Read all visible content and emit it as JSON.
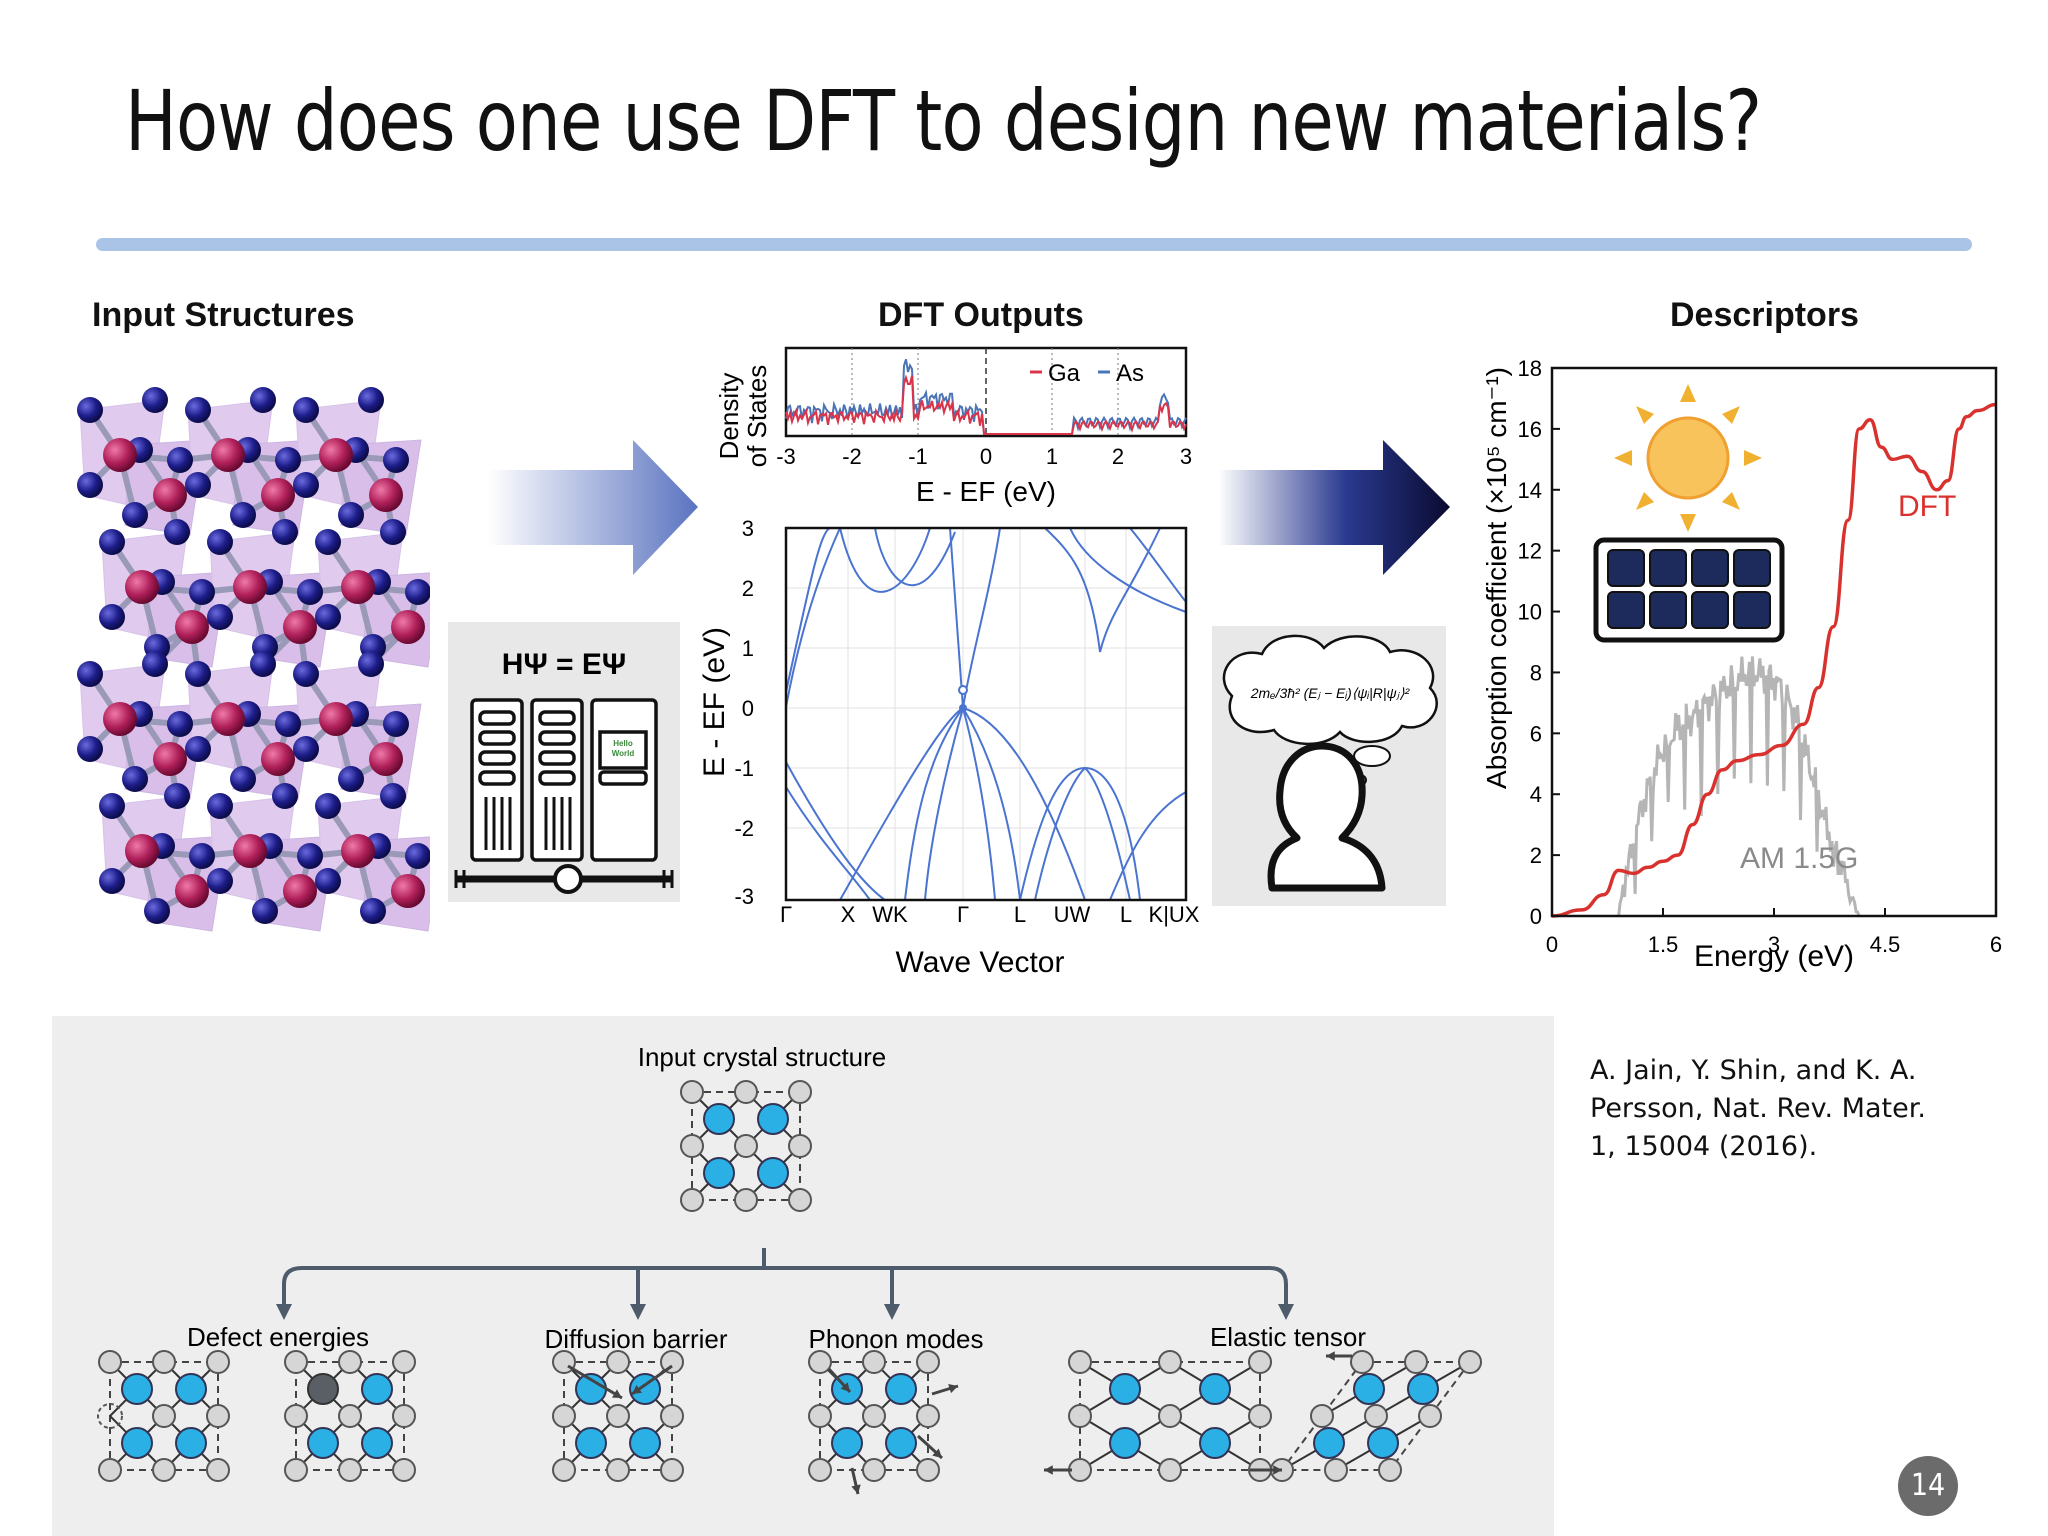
{
  "slide": {
    "title": "How does one use DFT to design new materials?",
    "citation_lines": [
      "A. Jain, Y. Shin, and K. A.",
      "Persson, Nat. Rev. Mater.",
      "1, 15004 (2016)."
    ],
    "page_number": "14"
  },
  "panels": {
    "input_title": "Input Structures",
    "dft_title": "DFT Outputs",
    "descriptors_title": "Descriptors",
    "equation": "HΨ = EΨ",
    "screen_text": [
      "Hello",
      "World"
    ]
  },
  "dos_plot": {
    "ylabel_lines": [
      "Density",
      "of States"
    ],
    "xlabel": "E - EF (eV)",
    "legend": [
      "Ga",
      "As"
    ],
    "xticks": [
      "-3",
      "-2",
      "-1",
      "0",
      "1",
      "2",
      "3"
    ],
    "colors": {
      "Ga": "#d9344a",
      "As": "#4a74b5"
    }
  },
  "band_plot": {
    "ylabel": "E - EF (eV)",
    "xlabel": "Wave Vector",
    "yticks": [
      "3",
      "2",
      "1",
      "0",
      "-1",
      "-2",
      "-3"
    ],
    "kpoints": [
      "Γ",
      "X",
      "WK",
      "Γ",
      "L",
      "UW",
      "L",
      "K|UX"
    ],
    "color": "#4a74d0"
  },
  "chart_data": {
    "type": "line",
    "xlabel": "Energy (eV)",
    "ylabel": "Absorption coefficient (×10⁵ cm⁻¹)",
    "xlim": [
      0,
      6
    ],
    "ylim": [
      0,
      18
    ],
    "xticks": [
      "0",
      "1.5",
      "3",
      "4.5",
      "6"
    ],
    "yticks": [
      "0",
      "2",
      "4",
      "6",
      "8",
      "10",
      "12",
      "14",
      "16",
      "18"
    ],
    "series": [
      {
        "name": "DFT",
        "color": "#d9322e",
        "x": [
          0,
          0.4,
          0.7,
          0.9,
          1.1,
          1.3,
          1.5,
          1.7,
          1.9,
          2.1,
          2.3,
          2.5,
          2.8,
          3.1,
          3.4,
          3.6,
          3.8,
          4.0,
          4.15,
          4.3,
          4.45,
          4.6,
          4.8,
          5.0,
          5.2,
          5.35,
          5.5,
          5.6,
          5.75,
          6.0
        ],
        "y": [
          0,
          0.2,
          0.7,
          1.5,
          1.4,
          1.6,
          1.8,
          2.0,
          3.0,
          4.0,
          4.8,
          5.1,
          5.3,
          5.6,
          6.3,
          7.5,
          9.5,
          13.0,
          16.0,
          16.3,
          15.4,
          15.0,
          15.1,
          14.6,
          14.0,
          14.3,
          16.0,
          16.4,
          16.6,
          16.8
        ]
      },
      {
        "name": "AM 1.5G",
        "color": "#b5b5b5",
        "x": [
          0.9,
          1.0,
          1.1,
          1.2,
          1.35,
          1.5,
          1.7,
          1.9,
          2.1,
          2.3,
          2.5,
          2.7,
          2.9,
          3.1,
          3.3,
          3.5,
          3.7,
          3.9,
          4.05,
          4.15
        ],
        "y": [
          0,
          1.5,
          2.2,
          3.5,
          4.5,
          5.5,
          6.2,
          6.5,
          7.0,
          7.4,
          7.8,
          8.0,
          7.9,
          7.5,
          6.5,
          4.8,
          3.0,
          1.7,
          0.6,
          0
        ]
      }
    ],
    "annotations": [
      "DFT",
      "AM 1.5G"
    ]
  },
  "workflow": {
    "root_label": "Input crystal structure",
    "branches": [
      "Defect energies",
      "Diffusion barrier",
      "Phonon modes",
      "Elastic tensor"
    ]
  },
  "thought_equation": "2mₑ/3ħ² (Eⱼ − Eᵢ)⟨ψᵢ|R|ψⱼ⟩²"
}
